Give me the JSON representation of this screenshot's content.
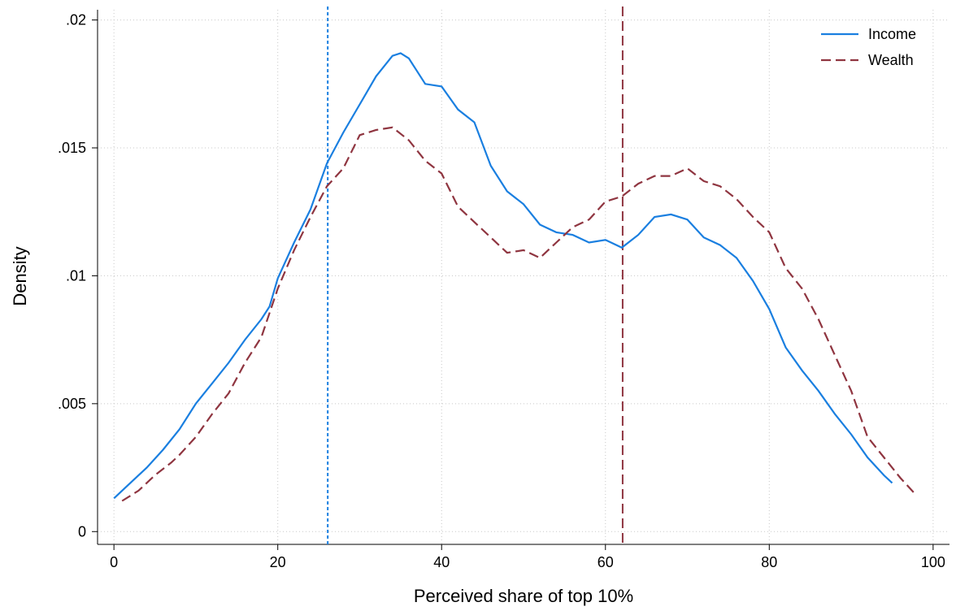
{
  "chart_data": {
    "type": "line",
    "xlabel": "Perceived   share of top 10%",
    "ylabel": "Density",
    "xlim": [
      -2,
      102
    ],
    "ylim": [
      -0.0005,
      0.0204
    ],
    "xticks": [
      0,
      20,
      40,
      60,
      80,
      100
    ],
    "yticks": [
      0,
      {
        "value": 0.005,
        "label": ".005"
      },
      {
        "value": 0.01,
        "label": ".01"
      },
      {
        "value": 0.015,
        "label": ".015"
      },
      {
        "value": 0.02,
        "label": ".02"
      }
    ],
    "grid": true,
    "legend": "top-right",
    "series": [
      {
        "name": "Income",
        "color": "#1a7fe0",
        "dash": "solid",
        "x": [
          0,
          2,
          4,
          6,
          8,
          10,
          12,
          14,
          16,
          18,
          19,
          20,
          22,
          24,
          26,
          28,
          30,
          32,
          34,
          35,
          36,
          38,
          40,
          42,
          44,
          46,
          48,
          50,
          52,
          54,
          56,
          58,
          60,
          62,
          64,
          66,
          68,
          70,
          72,
          74,
          76,
          78,
          80,
          82,
          84,
          86,
          88,
          90,
          92,
          94,
          95
        ],
        "values": [
          0.0013,
          0.0019,
          0.0025,
          0.0032,
          0.004,
          0.005,
          0.0058,
          0.0066,
          0.0075,
          0.0083,
          0.0088,
          0.0099,
          0.0113,
          0.0126,
          0.0144,
          0.0156,
          0.0167,
          0.0178,
          0.0186,
          0.0187,
          0.0185,
          0.0175,
          0.0174,
          0.0165,
          0.016,
          0.0143,
          0.0133,
          0.0128,
          0.012,
          0.0117,
          0.0116,
          0.0113,
          0.0114,
          0.0111,
          0.0116,
          0.0123,
          0.0124,
          0.0122,
          0.0115,
          0.0112,
          0.0107,
          0.0098,
          0.0087,
          0.0072,
          0.0063,
          0.0055,
          0.0046,
          0.0038,
          0.0029,
          0.0022,
          0.0019
        ]
      },
      {
        "name": "Wealth",
        "color": "#8f3540",
        "dash": "dashed",
        "x": [
          1,
          3,
          5,
          7,
          8,
          10,
          12,
          14,
          16,
          18,
          20,
          22,
          24,
          26,
          28,
          30,
          32,
          34,
          36,
          38,
          40,
          42,
          44,
          46,
          48,
          50,
          52,
          54,
          56,
          58,
          60,
          62,
          64,
          66,
          68,
          70,
          72,
          74,
          76,
          78,
          80,
          82,
          84,
          86,
          88,
          90,
          92,
          94,
          96,
          98
        ],
        "values": [
          0.0012,
          0.0016,
          0.0022,
          0.0027,
          0.003,
          0.0037,
          0.0046,
          0.0054,
          0.0066,
          0.0076,
          0.0095,
          0.011,
          0.0123,
          0.0135,
          0.0142,
          0.0155,
          0.0157,
          0.0158,
          0.0153,
          0.0145,
          0.014,
          0.0127,
          0.0121,
          0.0115,
          0.0109,
          0.011,
          0.0107,
          0.0113,
          0.0119,
          0.0122,
          0.0129,
          0.0131,
          0.0136,
          0.0139,
          0.0139,
          0.0142,
          0.0137,
          0.0135,
          0.013,
          0.0123,
          0.0117,
          0.0103,
          0.0095,
          0.0083,
          0.0069,
          0.0055,
          0.0037,
          0.0029,
          0.0021,
          0.0014
        ]
      }
    ],
    "vlines": [
      {
        "value": 26.1,
        "color": "#1a7fe0",
        "dash": "dotted"
      },
      {
        "value": 62.1,
        "color": "#8f3540",
        "dash": "dashed"
      }
    ]
  }
}
